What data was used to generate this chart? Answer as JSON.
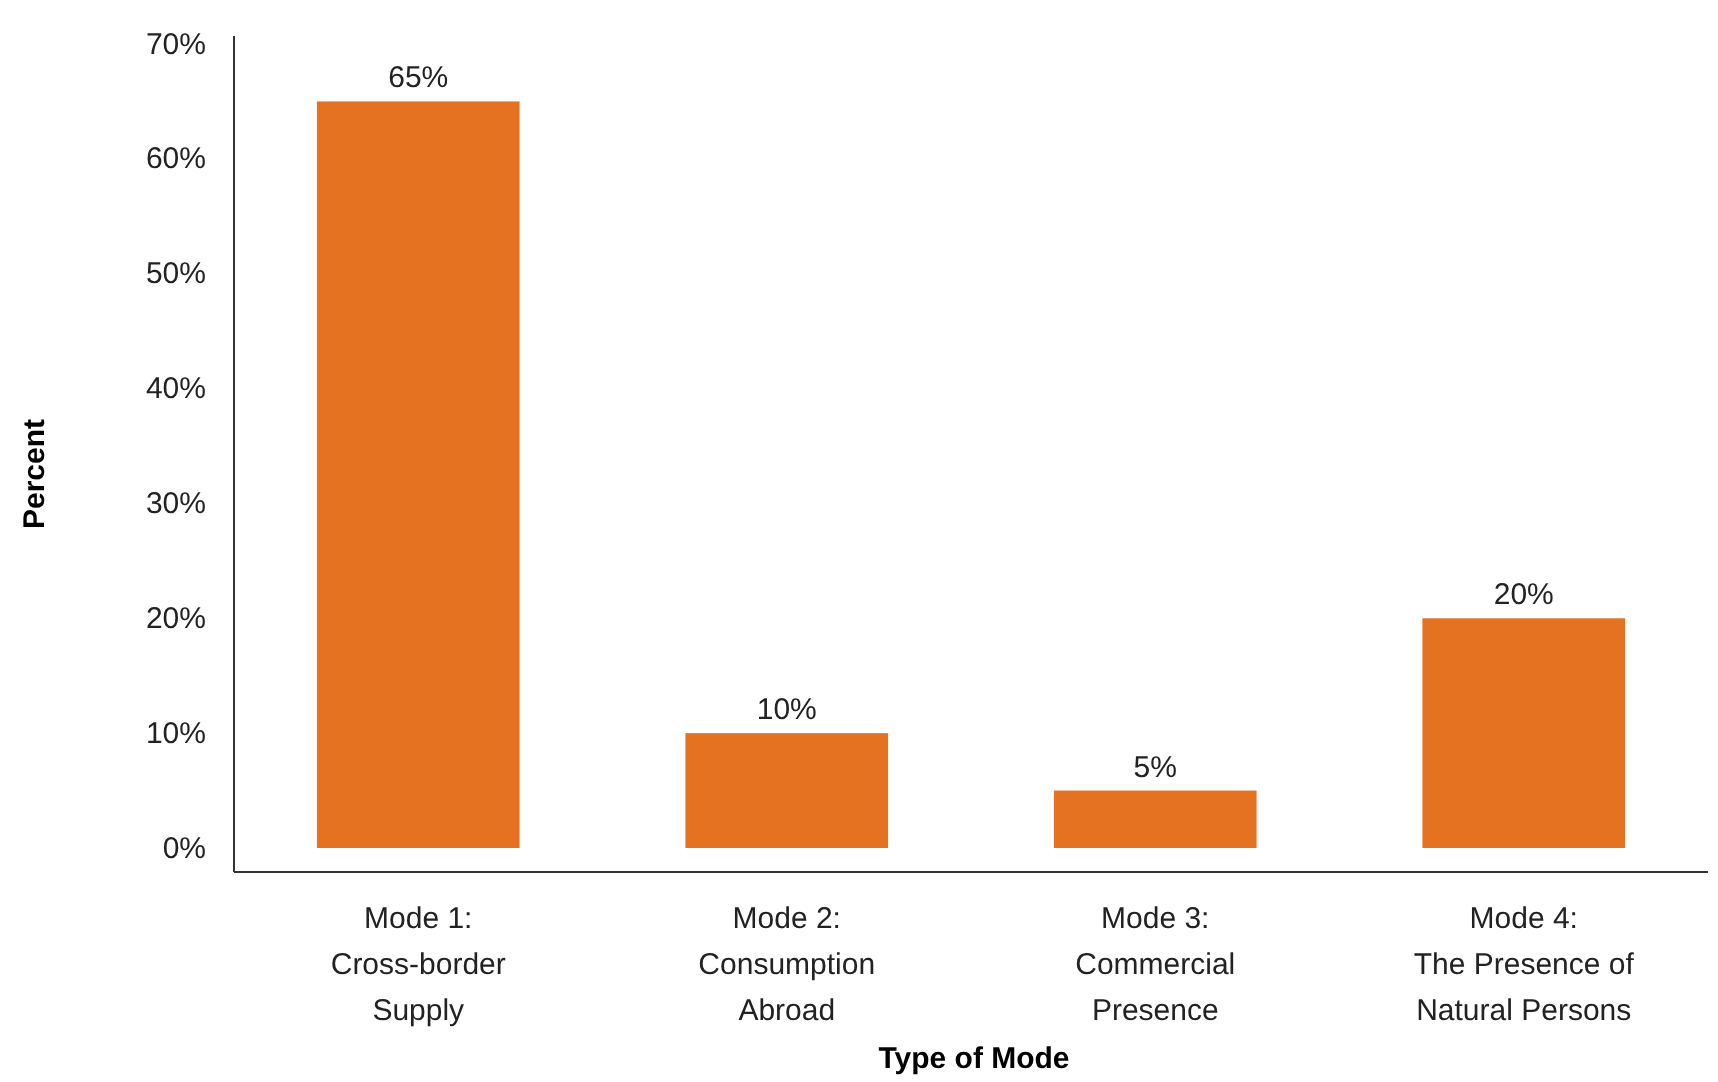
{
  "chart_data": {
    "type": "bar",
    "xlabel": "Type of Mode",
    "ylabel": "Percent",
    "categories": [
      "Mode 1: Cross-border Supply",
      "Mode 2: Consumption Abroad",
      "Mode 3: Commercial Presence",
      "Mode 4: The Presence of Natural Persons"
    ],
    "values": [
      65,
      10,
      5,
      20
    ],
    "color": "#e57220",
    "data_labels": true,
    "value_labels": [
      "65%",
      "10%",
      "5%",
      "20%"
    ],
    "ylim": [
      0,
      70
    ],
    "yticks": [
      {
        "value": 0,
        "label": "0%"
      },
      {
        "value": 10,
        "label": "10%"
      },
      {
        "value": 20,
        "label": "20%"
      },
      {
        "value": 30,
        "label": "30%"
      },
      {
        "value": 40,
        "label": "40%"
      },
      {
        "value": 50,
        "label": "50%"
      },
      {
        "value": 60,
        "label": "60%"
      },
      {
        "value": 70,
        "label": "70%"
      }
    ],
    "grid": false
  }
}
